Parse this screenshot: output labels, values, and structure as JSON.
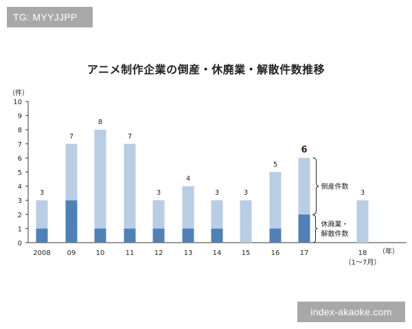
{
  "badges": {
    "top_left": "TG: MYYJJPP",
    "bottom_right": "index-akaoke.com"
  },
  "chart_data": {
    "type": "bar",
    "stacked": true,
    "title": "アニメ制作企業の倒産・休廃業・解散件数推移",
    "y_unit_label": "（件）",
    "x_unit_label": "（年）",
    "ylim": [
      0,
      10
    ],
    "yticks": [
      "0",
      "1",
      "2",
      "3",
      "4",
      "5",
      "6",
      "7",
      "8",
      "9",
      "10"
    ],
    "categories": [
      "2008",
      "09",
      "10",
      "11",
      "12",
      "13",
      "14",
      "15",
      "16",
      "17",
      "18"
    ],
    "category_sublabels": [
      "",
      "",
      "",
      "",
      "",
      "",
      "",
      "",
      "",
      "",
      "（1〜7月）"
    ],
    "totals": [
      "3",
      "7",
      "8",
      "7",
      "3",
      "4",
      "3",
      "3",
      "5",
      "6",
      "3"
    ],
    "highlight_index": 9,
    "series": [
      {
        "name": "休廃業・解散件数",
        "values": [
          1,
          3,
          1,
          1,
          1,
          1,
          1,
          0,
          1,
          2,
          0
        ],
        "color": "#4f81b7"
      },
      {
        "name": "倒産件数",
        "values": [
          2,
          4,
          7,
          6,
          2,
          3,
          2,
          3,
          4,
          4,
          3
        ],
        "color": "#b9cde5"
      }
    ],
    "annotations": {
      "upper": "倒産件数",
      "lower_line1": "休廃業・",
      "lower_line2": "解散件数"
    },
    "grid": false
  }
}
